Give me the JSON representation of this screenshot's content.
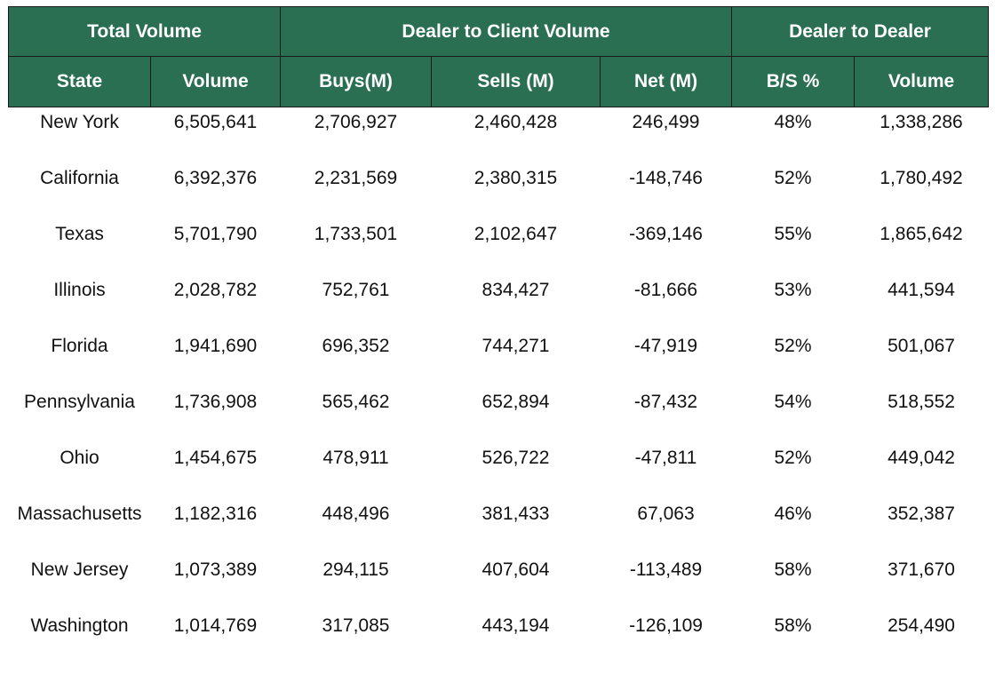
{
  "header": {
    "groups": {
      "total_volume": "Total Volume",
      "dealer_to_client": "Dealer to Client Volume",
      "dealer_to_dealer": "Dealer to Dealer"
    },
    "columns": {
      "state": "State",
      "volume": "Volume",
      "buys": "Buys(M)",
      "sells": "Sells (M)",
      "net": "Net (M)",
      "bs_pct": "B/S %",
      "dd_volume": "Volume"
    }
  },
  "rows": [
    {
      "state": "New York",
      "volume": "6,505,641",
      "buys": "2,706,927",
      "sells": "2,460,428",
      "net": "246,499",
      "bs_pct": "48%",
      "dd_volume": "1,338,286"
    },
    {
      "state": "California",
      "volume": "6,392,376",
      "buys": "2,231,569",
      "sells": "2,380,315",
      "net": "-148,746",
      "bs_pct": "52%",
      "dd_volume": "1,780,492"
    },
    {
      "state": "Texas",
      "volume": "5,701,790",
      "buys": "1,733,501",
      "sells": "2,102,647",
      "net": "-369,146",
      "bs_pct": "55%",
      "dd_volume": "1,865,642"
    },
    {
      "state": "Illinois",
      "volume": "2,028,782",
      "buys": "752,761",
      "sells": "834,427",
      "net": "-81,666",
      "bs_pct": "53%",
      "dd_volume": "441,594"
    },
    {
      "state": "Florida",
      "volume": "1,941,690",
      "buys": "696,352",
      "sells": "744,271",
      "net": "-47,919",
      "bs_pct": "52%",
      "dd_volume": "501,067"
    },
    {
      "state": "Pennsylvania",
      "volume": "1,736,908",
      "buys": "565,462",
      "sells": "652,894",
      "net": "-87,432",
      "bs_pct": "54%",
      "dd_volume": "518,552"
    },
    {
      "state": "Ohio",
      "volume": "1,454,675",
      "buys": "478,911",
      "sells": "526,722",
      "net": "-47,811",
      "bs_pct": "52%",
      "dd_volume": "449,042"
    },
    {
      "state": "Massachusetts",
      "volume": "1,182,316",
      "buys": "448,496",
      "sells": "381,433",
      "net": "67,063",
      "bs_pct": "46%",
      "dd_volume": "352,387"
    },
    {
      "state": "New Jersey",
      "volume": "1,073,389",
      "buys": "294,115",
      "sells": "407,604",
      "net": "-113,489",
      "bs_pct": "58%",
      "dd_volume": "371,670"
    },
    {
      "state": "Washington",
      "volume": "1,014,769",
      "buys": "317,085",
      "sells": "443,194",
      "net": "-126,109",
      "bs_pct": "58%",
      "dd_volume": "254,490"
    }
  ],
  "colors": {
    "header_bg": "#2b6f52",
    "header_text": "#ffffff",
    "border": "#1a1a1a",
    "body_text": "#111111"
  }
}
